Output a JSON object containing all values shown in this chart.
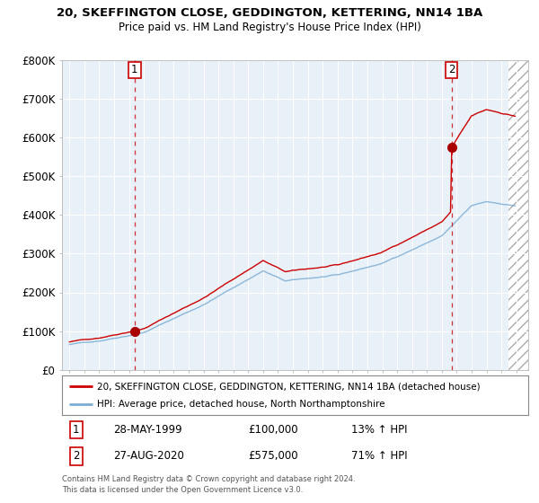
{
  "title_line1": "20, SKEFFINGTON CLOSE, GEDDINGTON, KETTERING, NN14 1BA",
  "title_line2": "Price paid vs. HM Land Registry's House Price Index (HPI)",
  "ylim": [
    0,
    800000
  ],
  "yticks": [
    0,
    100000,
    200000,
    300000,
    400000,
    500000,
    600000,
    700000,
    800000
  ],
  "ytick_labels": [
    "£0",
    "£100K",
    "£200K",
    "£300K",
    "£400K",
    "£500K",
    "£600K",
    "£700K",
    "£800K"
  ],
  "sale1_year": 1999.38,
  "sale1_price": 100000,
  "sale1_label": "1",
  "sale1_date": "28-MAY-1999",
  "sale1_amount": "£100,000",
  "sale1_hpi": "13% ↑ HPI",
  "sale2_year": 2020.65,
  "sale2_price": 575000,
  "sale2_label": "2",
  "sale2_date": "27-AUG-2020",
  "sale2_amount": "£575,000",
  "sale2_hpi": "71% ↑ HPI",
  "line_property_color": "#cc0000",
  "line_hpi_color": "#7aadd4",
  "legend_property_label": "20, SKEFFINGTON CLOSE, GEDDINGTON, KETTERING, NN14 1BA (detached house)",
  "legend_hpi_label": "HPI: Average price, detached house, North Northamptonshire",
  "copyright_text": "Contains HM Land Registry data © Crown copyright and database right 2024.\nThis data is licensed under the Open Government Licence v3.0.",
  "background_color": "#ffffff",
  "chart_bg_color": "#e8f0f8",
  "grid_color": "#ffffff"
}
